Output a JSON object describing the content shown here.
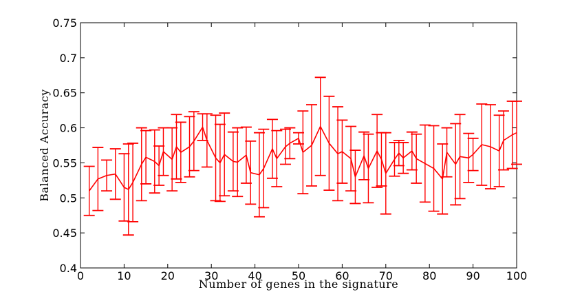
{
  "chart_data": {
    "type": "line",
    "title": "",
    "xlabel": "Number of genes in the signature",
    "ylabel": "Balanced Accuracy",
    "xlim": [
      0,
      100
    ],
    "ylim": [
      0.4,
      0.75
    ],
    "xticks": [
      "0",
      "10",
      "20",
      "30",
      "40",
      "50",
      "60",
      "70",
      "80",
      "90",
      "100"
    ],
    "yticks": [
      "0.4",
      "0.45",
      "0.5",
      "0.55",
      "0.6",
      "0.65",
      "0.7",
      "0.75"
    ],
    "grid": false,
    "series_color": "#ff0000",
    "series": [
      {
        "x": [
          2,
          4,
          6,
          8,
          10,
          11,
          12,
          14,
          15,
          17,
          18,
          19,
          21,
          22,
          23,
          25,
          26,
          28,
          29,
          31,
          32,
          33,
          35,
          36,
          38,
          39,
          41,
          42,
          44,
          45,
          47,
          48,
          50,
          51,
          53,
          55,
          57,
          59,
          60,
          62,
          63,
          65,
          66,
          68,
          69,
          70,
          72,
          73,
          74,
          76,
          77,
          79,
          81,
          83,
          84,
          86,
          87,
          89,
          90,
          92,
          94,
          96,
          97,
          99,
          100
        ],
        "y": [
          0.51,
          0.527,
          0.532,
          0.534,
          0.515,
          0.512,
          0.522,
          0.548,
          0.558,
          0.552,
          0.546,
          0.566,
          0.555,
          0.573,
          0.565,
          0.573,
          0.581,
          0.601,
          0.582,
          0.557,
          0.55,
          0.562,
          0.552,
          0.551,
          0.561,
          0.536,
          0.533,
          0.542,
          0.57,
          0.556,
          0.573,
          0.578,
          0.585,
          0.565,
          0.575,
          0.602,
          0.578,
          0.563,
          0.566,
          0.556,
          0.53,
          0.56,
          0.542,
          0.567,
          0.555,
          0.535,
          0.555,
          0.564,
          0.557,
          0.567,
          0.556,
          0.549,
          0.542,
          0.527,
          0.565,
          0.548,
          0.559,
          0.557,
          0.562,
          0.576,
          0.573,
          0.567,
          0.582,
          0.59,
          0.593
        ],
        "error": [
          0.035,
          0.045,
          0.022,
          0.036,
          0.048,
          0.065,
          0.056,
          0.052,
          0.038,
          0.045,
          0.028,
          0.034,
          0.045,
          0.046,
          0.043,
          0.043,
          0.042,
          0.019,
          0.038,
          0.061,
          0.055,
          0.059,
          0.042,
          0.049,
          0.04,
          0.045,
          0.06,
          0.056,
          0.042,
          0.04,
          0.025,
          0.022,
          0.008,
          0.059,
          0.058,
          0.07,
          0.067,
          0.067,
          0.045,
          0.046,
          0.038,
          0.034,
          0.049,
          0.052,
          0.038,
          0.058,
          0.024,
          0.018,
          0.022,
          0.027,
          0.035,
          0.055,
          0.061,
          0.05,
          0.035,
          0.058,
          0.06,
          0.035,
          0.023,
          0.058,
          0.06,
          0.051,
          0.042,
          0.048,
          0.045
        ]
      }
    ]
  }
}
